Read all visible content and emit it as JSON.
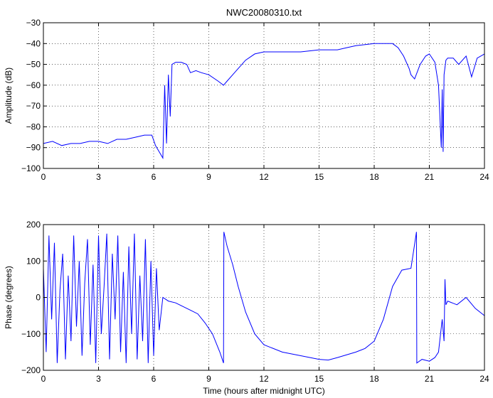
{
  "chart_data": [
    {
      "type": "line",
      "title": "NWC20080310.txt",
      "xlabel": "",
      "ylabel": "Amplitude (dB)",
      "xlim": [
        0,
        24
      ],
      "ylim": [
        -100,
        -30
      ],
      "x_ticks": [
        "0",
        "3",
        "6",
        "9",
        "12",
        "15",
        "18",
        "21",
        "24"
      ],
      "y_ticks": [
        "-100",
        "-90",
        "-80",
        "-70",
        "-60",
        "-50",
        "-40",
        "-30"
      ],
      "grid": true,
      "series": [
        {
          "color": "#0000ff",
          "x": [
            0,
            0.5,
            1,
            1.5,
            2,
            2.5,
            3,
            3.5,
            4,
            4.5,
            5,
            5.5,
            5.9,
            6.1,
            6.3,
            6.5,
            6.6,
            6.7,
            6.8,
            6.9,
            7.0,
            7.2,
            7.5,
            7.8,
            8.0,
            8.3,
            8.6,
            9.0,
            9.5,
            9.8,
            10.0,
            10.3,
            10.6,
            11.0,
            11.5,
            12.0,
            13.0,
            14.0,
            15.0,
            16.0,
            16.5,
            17.0,
            18.0,
            18.5,
            19.0,
            19.3,
            19.6,
            19.9,
            20.0,
            20.2,
            20.5,
            20.8,
            21.0,
            21.3,
            21.5,
            21.65,
            21.7,
            21.75,
            21.8,
            21.9,
            22.0,
            22.3,
            22.6,
            23.0,
            23.3,
            23.6,
            24.0
          ],
          "y": [
            -88,
            -87,
            -89,
            -88,
            -88,
            -87,
            -87,
            -88,
            -86,
            -86,
            -85,
            -84,
            -84,
            -89,
            -92,
            -95,
            -60,
            -88,
            -55,
            -75,
            -50,
            -49,
            -49,
            -50,
            -54,
            -53,
            -54,
            -55,
            -58,
            -60,
            -58,
            -55,
            -52,
            -48,
            -45,
            -44,
            -44,
            -44,
            -43,
            -43,
            -42,
            -41,
            -40,
            -40,
            -40,
            -42,
            -46,
            -52,
            -55,
            -57,
            -50,
            -46,
            -45,
            -49,
            -60,
            -90,
            -62,
            -92,
            -55,
            -48,
            -47,
            -47,
            -50,
            -46,
            -56,
            -47,
            -45
          ]
        }
      ]
    },
    {
      "type": "line",
      "title": "",
      "xlabel": "Time (hours after midnight UTC)",
      "ylabel": "Phase (degrees)",
      "xlim": [
        0,
        24
      ],
      "ylim": [
        -200,
        200
      ],
      "x_ticks": [
        "0",
        "3",
        "6",
        "9",
        "12",
        "15",
        "18",
        "21",
        "24"
      ],
      "y_ticks": [
        "-200",
        "-100",
        "0",
        "100",
        "200"
      ],
      "grid": true,
      "series": [
        {
          "color": "#0000ff",
          "x": [
            0,
            0.15,
            0.3,
            0.45,
            0.6,
            0.75,
            0.9,
            1.05,
            1.2,
            1.35,
            1.5,
            1.65,
            1.8,
            1.95,
            2.1,
            2.25,
            2.4,
            2.55,
            2.7,
            2.85,
            3.0,
            3.15,
            3.3,
            3.45,
            3.6,
            3.75,
            3.9,
            4.05,
            4.2,
            4.35,
            4.5,
            4.65,
            4.8,
            4.95,
            5.1,
            5.25,
            5.4,
            5.55,
            5.7,
            5.85,
            6.0,
            6.15,
            6.3,
            6.5,
            6.8,
            7.2,
            7.6,
            8.0,
            8.4,
            8.8,
            9.2,
            9.6,
            9.8,
            9.82,
            10.0,
            10.3,
            10.6,
            11.0,
            11.5,
            12.0,
            13.0,
            14.0,
            15.0,
            15.5,
            16.0,
            17.0,
            17.5,
            18.0,
            18.5,
            19.0,
            19.5,
            20.0,
            20.3,
            20.32,
            20.6,
            21.0,
            21.3,
            21.5,
            21.7,
            21.8,
            21.85,
            21.9,
            22.0,
            22.5,
            23.0,
            23.5,
            24.0
          ],
          "y": [
            80,
            -150,
            170,
            -60,
            150,
            -180,
            20,
            120,
            -170,
            60,
            -120,
            170,
            -80,
            100,
            -160,
            40,
            160,
            -130,
            90,
            -180,
            170,
            -100,
            30,
            175,
            -170,
            120,
            -60,
            170,
            -150,
            70,
            -180,
            140,
            -100,
            175,
            -170,
            60,
            -120,
            160,
            -180,
            100,
            -160,
            80,
            -90,
            0,
            -10,
            -15,
            -25,
            -35,
            -45,
            -70,
            -100,
            -150,
            -180,
            180,
            140,
            90,
            30,
            -40,
            -100,
            -130,
            -150,
            -160,
            -170,
            -172,
            -165,
            -150,
            -140,
            -120,
            -60,
            30,
            75,
            80,
            180,
            -180,
            -170,
            -175,
            -165,
            -150,
            -60,
            -120,
            50,
            -20,
            -10,
            -20,
            0,
            -30,
            -50
          ]
        }
      ]
    }
  ]
}
